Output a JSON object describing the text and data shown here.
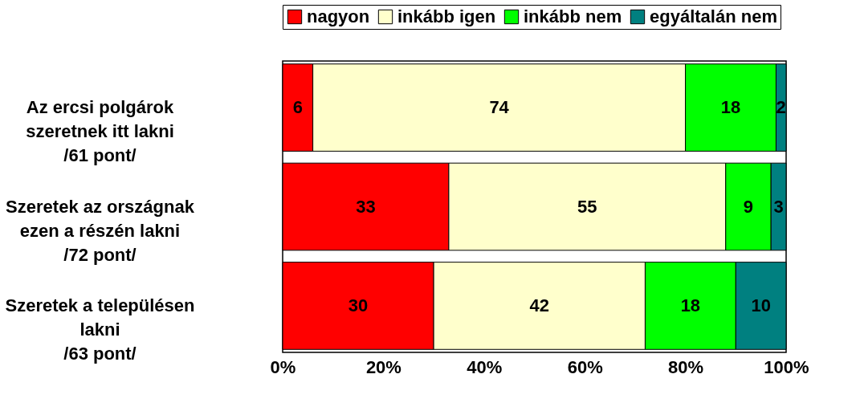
{
  "chart_data": {
    "type": "bar",
    "orientation": "horizontal",
    "stacked": true,
    "data_labels": true,
    "legend": "top",
    "grid": false,
    "categories": [
      "Az ercsi polgárok\nszeretnek itt lakni\n/61 pont/",
      "Szeretek az országnak\nezen a részén lakni\n/72 pont/",
      "Szeretek a településen\nlakni\n/63 pont/"
    ],
    "series": [
      {
        "name": "nagyon",
        "color": "#ff0000",
        "values": [
          6,
          33,
          30
        ]
      },
      {
        "name": "inkább igen",
        "color": "#ffffcc",
        "values": [
          74,
          55,
          42
        ]
      },
      {
        "name": "inkább nem",
        "color": "#00ff00",
        "values": [
          18,
          9,
          18
        ]
      },
      {
        "name": "egyáltalán nem",
        "color": "#008080",
        "values": [
          2,
          3,
          10
        ]
      }
    ],
    "xlim": [
      0,
      100
    ],
    "xticks": [
      {
        "value": 0,
        "label": "0%"
      },
      {
        "value": 20,
        "label": "20%"
      },
      {
        "value": 40,
        "label": "40%"
      },
      {
        "value": 60,
        "label": "60%"
      },
      {
        "value": 80,
        "label": "80%"
      },
      {
        "value": 100,
        "label": "100%"
      }
    ]
  }
}
